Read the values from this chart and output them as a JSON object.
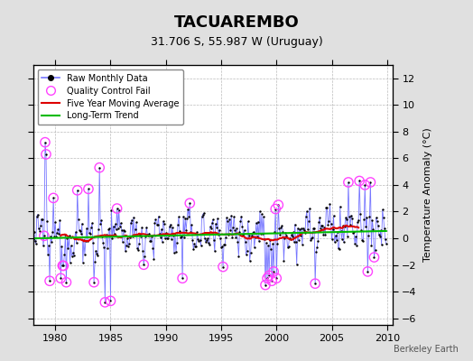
{
  "title": "TACUAREMBO",
  "subtitle": "31.706 S, 55.987 W (Uruguay)",
  "ylabel": "Temperature Anomaly (°C)",
  "watermark": "Berkeley Earth",
  "xlim": [
    1978.0,
    2010.5
  ],
  "ylim": [
    -6.5,
    13.0
  ],
  "yticks": [
    -6,
    -4,
    -2,
    0,
    2,
    4,
    6,
    8,
    10,
    12
  ],
  "xticks": [
    1980,
    1985,
    1990,
    1995,
    2000,
    2005,
    2010
  ],
  "outer_bg_color": "#e0e0e0",
  "plot_bg_color": "#ffffff",
  "raw_line_color": "#7777ff",
  "raw_dot_color": "#000000",
  "qc_fail_color": "#ff44ff",
  "five_year_color": "#dd0000",
  "trend_color": "#00bb00",
  "seed": 12345
}
